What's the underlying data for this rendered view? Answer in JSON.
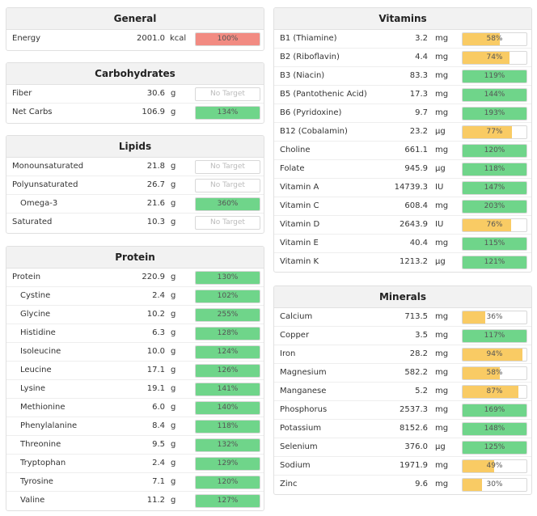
{
  "colors": {
    "red": "#f28b82",
    "green": "#6fd58a",
    "yellow": "#f9cb64",
    "none": "#ffffff"
  },
  "panels": [
    {
      "id": "general",
      "title": "General",
      "rows": [
        {
          "name": "Energy",
          "amount": "2001.0",
          "unit": "kcal",
          "label": "100%",
          "pct": 100,
          "color": "red"
        }
      ]
    },
    {
      "id": "carbohydrates",
      "title": "Carbohydrates",
      "rows": [
        {
          "name": "Fiber",
          "amount": "30.6",
          "unit": "g",
          "label": "No Target",
          "pct": 0,
          "color": "none"
        },
        {
          "name": "Net Carbs",
          "amount": "106.9",
          "unit": "g",
          "label": "134%",
          "pct": 100,
          "color": "green"
        }
      ]
    },
    {
      "id": "lipids",
      "title": "Lipids",
      "rows": [
        {
          "name": "Monounsaturated",
          "amount": "21.8",
          "unit": "g",
          "label": "No Target",
          "pct": 0,
          "color": "none"
        },
        {
          "name": "Polyunsaturated",
          "amount": "26.7",
          "unit": "g",
          "label": "No Target",
          "pct": 0,
          "color": "none"
        },
        {
          "name": "Omega-3",
          "amount": "21.6",
          "unit": "g",
          "label": "360%",
          "pct": 100,
          "color": "green",
          "indent": true
        },
        {
          "name": "Saturated",
          "amount": "10.3",
          "unit": "g",
          "label": "No Target",
          "pct": 0,
          "color": "none"
        }
      ]
    },
    {
      "id": "protein",
      "title": "Protein",
      "rows": [
        {
          "name": "Protein",
          "amount": "220.9",
          "unit": "g",
          "label": "130%",
          "pct": 100,
          "color": "green"
        },
        {
          "name": "Cystine",
          "amount": "2.4",
          "unit": "g",
          "label": "102%",
          "pct": 100,
          "color": "green",
          "indent": true
        },
        {
          "name": "Glycine",
          "amount": "10.2",
          "unit": "g",
          "label": "255%",
          "pct": 100,
          "color": "green",
          "indent": true
        },
        {
          "name": "Histidine",
          "amount": "6.3",
          "unit": "g",
          "label": "128%",
          "pct": 100,
          "color": "green",
          "indent": true
        },
        {
          "name": "Isoleucine",
          "amount": "10.0",
          "unit": "g",
          "label": "124%",
          "pct": 100,
          "color": "green",
          "indent": true
        },
        {
          "name": "Leucine",
          "amount": "17.1",
          "unit": "g",
          "label": "126%",
          "pct": 100,
          "color": "green",
          "indent": true
        },
        {
          "name": "Lysine",
          "amount": "19.1",
          "unit": "g",
          "label": "141%",
          "pct": 100,
          "color": "green",
          "indent": true
        },
        {
          "name": "Methionine",
          "amount": "6.0",
          "unit": "g",
          "label": "140%",
          "pct": 100,
          "color": "green",
          "indent": true
        },
        {
          "name": "Phenylalanine",
          "amount": "8.4",
          "unit": "g",
          "label": "118%",
          "pct": 100,
          "color": "green",
          "indent": true
        },
        {
          "name": "Threonine",
          "amount": "9.5",
          "unit": "g",
          "label": "132%",
          "pct": 100,
          "color": "green",
          "indent": true
        },
        {
          "name": "Tryptophan",
          "amount": "2.4",
          "unit": "g",
          "label": "129%",
          "pct": 100,
          "color": "green",
          "indent": true
        },
        {
          "name": "Tyrosine",
          "amount": "7.1",
          "unit": "g",
          "label": "120%",
          "pct": 100,
          "color": "green",
          "indent": true
        },
        {
          "name": "Valine",
          "amount": "11.2",
          "unit": "g",
          "label": "127%",
          "pct": 100,
          "color": "green",
          "indent": true
        }
      ]
    },
    {
      "id": "vitamins",
      "title": "Vitamins",
      "rows": [
        {
          "name": "B1 (Thiamine)",
          "amount": "3.2",
          "unit": "mg",
          "label": "58%",
          "pct": 58,
          "color": "yellow"
        },
        {
          "name": "B2 (Riboflavin)",
          "amount": "4.4",
          "unit": "mg",
          "label": "74%",
          "pct": 74,
          "color": "yellow"
        },
        {
          "name": "B3 (Niacin)",
          "amount": "83.3",
          "unit": "mg",
          "label": "119%",
          "pct": 100,
          "color": "green"
        },
        {
          "name": "B5 (Pantothenic Acid)",
          "amount": "17.3",
          "unit": "mg",
          "label": "144%",
          "pct": 100,
          "color": "green"
        },
        {
          "name": "B6 (Pyridoxine)",
          "amount": "9.7",
          "unit": "mg",
          "label": "193%",
          "pct": 100,
          "color": "green"
        },
        {
          "name": "B12 (Cobalamin)",
          "amount": "23.2",
          "unit": "µg",
          "label": "77%",
          "pct": 77,
          "color": "yellow"
        },
        {
          "name": "Choline",
          "amount": "661.1",
          "unit": "mg",
          "label": "120%",
          "pct": 100,
          "color": "green"
        },
        {
          "name": "Folate",
          "amount": "945.9",
          "unit": "µg",
          "label": "118%",
          "pct": 100,
          "color": "green"
        },
        {
          "name": "Vitamin A",
          "amount": "14739.3",
          "unit": "IU",
          "label": "147%",
          "pct": 100,
          "color": "green"
        },
        {
          "name": "Vitamin C",
          "amount": "608.4",
          "unit": "mg",
          "label": "203%",
          "pct": 100,
          "color": "green"
        },
        {
          "name": "Vitamin D",
          "amount": "2643.9",
          "unit": "IU",
          "label": "76%",
          "pct": 76,
          "color": "yellow"
        },
        {
          "name": "Vitamin E",
          "amount": "40.4",
          "unit": "mg",
          "label": "115%",
          "pct": 100,
          "color": "green"
        },
        {
          "name": "Vitamin K",
          "amount": "1213.2",
          "unit": "µg",
          "label": "121%",
          "pct": 100,
          "color": "green"
        }
      ]
    },
    {
      "id": "minerals",
      "title": "Minerals",
      "rows": [
        {
          "name": "Calcium",
          "amount": "713.5",
          "unit": "mg",
          "label": "36%",
          "pct": 36,
          "color": "yellow"
        },
        {
          "name": "Copper",
          "amount": "3.5",
          "unit": "mg",
          "label": "117%",
          "pct": 100,
          "color": "green"
        },
        {
          "name": "Iron",
          "amount": "28.2",
          "unit": "mg",
          "label": "94%",
          "pct": 94,
          "color": "yellow"
        },
        {
          "name": "Magnesium",
          "amount": "582.2",
          "unit": "mg",
          "label": "58%",
          "pct": 58,
          "color": "yellow"
        },
        {
          "name": "Manganese",
          "amount": "5.2",
          "unit": "mg",
          "label": "87%",
          "pct": 87,
          "color": "yellow"
        },
        {
          "name": "Phosphorus",
          "amount": "2537.3",
          "unit": "mg",
          "label": "169%",
          "pct": 100,
          "color": "green"
        },
        {
          "name": "Potassium",
          "amount": "8152.6",
          "unit": "mg",
          "label": "148%",
          "pct": 100,
          "color": "green"
        },
        {
          "name": "Selenium",
          "amount": "376.0",
          "unit": "µg",
          "label": "125%",
          "pct": 100,
          "color": "green"
        },
        {
          "name": "Sodium",
          "amount": "1971.9",
          "unit": "mg",
          "label": "49%",
          "pct": 49,
          "color": "yellow"
        },
        {
          "name": "Zinc",
          "amount": "9.6",
          "unit": "mg",
          "label": "30%",
          "pct": 30,
          "color": "yellow"
        }
      ]
    }
  ]
}
